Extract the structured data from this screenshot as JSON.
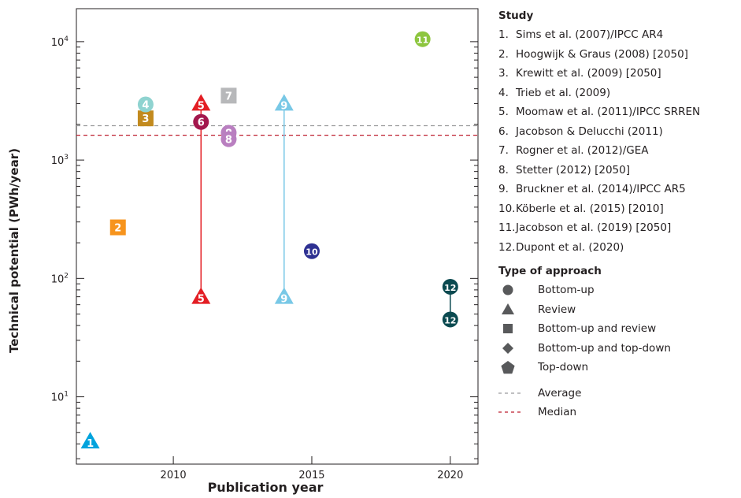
{
  "chart_data": {
    "type": "scatter",
    "xlabel": "Publication year",
    "ylabel": "Technical potential (PWh/year)",
    "y_scale": "log",
    "xlim": [
      2006.5,
      2021
    ],
    "ylim": [
      2.7,
      19000
    ],
    "x_ticks": [
      2010,
      2015,
      2020
    ],
    "x_tick_labels": [
      "2010",
      "2015",
      "2020"
    ],
    "y_ticks": [
      {
        "value": 10,
        "base": "10",
        "exp": "1"
      },
      {
        "value": 100,
        "base": "10",
        "exp": "2"
      },
      {
        "value": 1000,
        "base": "10",
        "exp": "3"
      },
      {
        "value": 10000,
        "base": "10",
        "exp": "4"
      }
    ],
    "grid": false,
    "reference_lines": [
      {
        "name": "Average",
        "value": 1950,
        "color": "#9a9b9d",
        "dash": "5,4"
      },
      {
        "name": "Median",
        "value": 1620,
        "color": "#be1e2d",
        "dash": "5,4"
      }
    ],
    "ranges": [
      {
        "study": 5,
        "x": 2011,
        "low": 70,
        "high": 3000,
        "color": "#e31e24"
      },
      {
        "study": 9,
        "x": 2014,
        "low": 70,
        "high": 3000,
        "color": "#78c8e6"
      },
      {
        "study": 12,
        "x": 2020,
        "low": 45,
        "high": 85,
        "color": "#0b4a50"
      }
    ],
    "points": [
      {
        "study": 1,
        "label": "1",
        "x": 2007,
        "y": 4.2,
        "shape": "triangle",
        "color": "#00a3dd"
      },
      {
        "study": 2,
        "label": "2",
        "x": 2008,
        "y": 270,
        "shape": "square",
        "color": "#f7941d"
      },
      {
        "study": 3,
        "label": "3",
        "x": 2009,
        "y": 2250,
        "shape": "square",
        "color": "#c28a1e"
      },
      {
        "study": 4,
        "label": "4",
        "x": 2009,
        "y": 2950,
        "shape": "circle",
        "color": "#8fd3d0"
      },
      {
        "study": 5,
        "label": "5",
        "x": 2011,
        "y": 3000,
        "shape": "triangle",
        "color": "#e31e24"
      },
      {
        "study": 5,
        "label": "5",
        "x": 2011,
        "y": 70,
        "shape": "triangle",
        "color": "#e31e24"
      },
      {
        "study": 6,
        "label": "6",
        "x": 2011,
        "y": 2100,
        "shape": "circle",
        "color": "#a3174d"
      },
      {
        "study": 7,
        "label": "7",
        "x": 2012,
        "y": 3500,
        "shape": "square",
        "color": "#b7b8ba"
      },
      {
        "study": 8,
        "label": "8",
        "x": 2012,
        "y": 1700,
        "shape": "circle",
        "color": "#b97fc0"
      },
      {
        "study": 8,
        "label": "8",
        "x": 2012,
        "y": 1500,
        "shape": "circle",
        "color": "#b97fc0"
      },
      {
        "study": 9,
        "label": "9",
        "x": 2014,
        "y": 3000,
        "shape": "triangle",
        "color": "#78c8e6"
      },
      {
        "study": 9,
        "label": "9",
        "x": 2014,
        "y": 70,
        "shape": "triangle",
        "color": "#78c8e6"
      },
      {
        "study": 10,
        "label": "10",
        "x": 2015,
        "y": 170,
        "shape": "circle",
        "color": "#2e3192"
      },
      {
        "study": 11,
        "label": "11",
        "x": 2019,
        "y": 10500,
        "shape": "circle",
        "color": "#8dc63f"
      },
      {
        "study": 12,
        "label": "12",
        "x": 2020,
        "y": 85,
        "shape": "circle",
        "color": "#0b4a50"
      },
      {
        "study": 12,
        "label": "12",
        "x": 2020,
        "y": 45,
        "shape": "circle",
        "color": "#0b4a50"
      }
    ]
  },
  "legend": {
    "study_title": "Study",
    "studies": [
      {
        "num": "1.",
        "label": "Sims et al. (2007)/IPCC AR4"
      },
      {
        "num": "2.",
        "label": "Hoogwijk & Graus (2008) [2050]"
      },
      {
        "num": "3.",
        "label": "Krewitt et al. (2009) [2050]"
      },
      {
        "num": "4.",
        "label": "Trieb et al. (2009)"
      },
      {
        "num": "5.",
        "label": "Moomaw et al. (2011)/IPCC SRREN"
      },
      {
        "num": "6.",
        "label": "Jacobson & Delucchi (2011)"
      },
      {
        "num": "7.",
        "label": "Rogner et al. (2012)/GEA"
      },
      {
        "num": "8.",
        "label": "Stetter (2012) [2050]"
      },
      {
        "num": "9.",
        "label": "Bruckner et al. (2014)/IPCC AR5"
      },
      {
        "num": "10.",
        "label": "Köberle et al. (2015) [2010]"
      },
      {
        "num": "11.",
        "label": "Jacobson et al. (2019) [2050]"
      },
      {
        "num": "12.",
        "label": "Dupont et al. (2020)"
      }
    ],
    "approach_title": "Type of approach",
    "approaches": [
      {
        "label": "Bottom-up",
        "shape": "circle"
      },
      {
        "label": "Review",
        "shape": "triangle"
      },
      {
        "label": "Bottom-up and review",
        "shape": "square"
      },
      {
        "label": "Bottom-up and top-down",
        "shape": "diamond"
      },
      {
        "label": "Top-down",
        "shape": "pentagon"
      }
    ],
    "symbol_color": "#58595b",
    "lines": [
      {
        "label": "Average",
        "color": "#9a9b9d"
      },
      {
        "label": "Median",
        "color": "#be1e2d"
      }
    ]
  }
}
